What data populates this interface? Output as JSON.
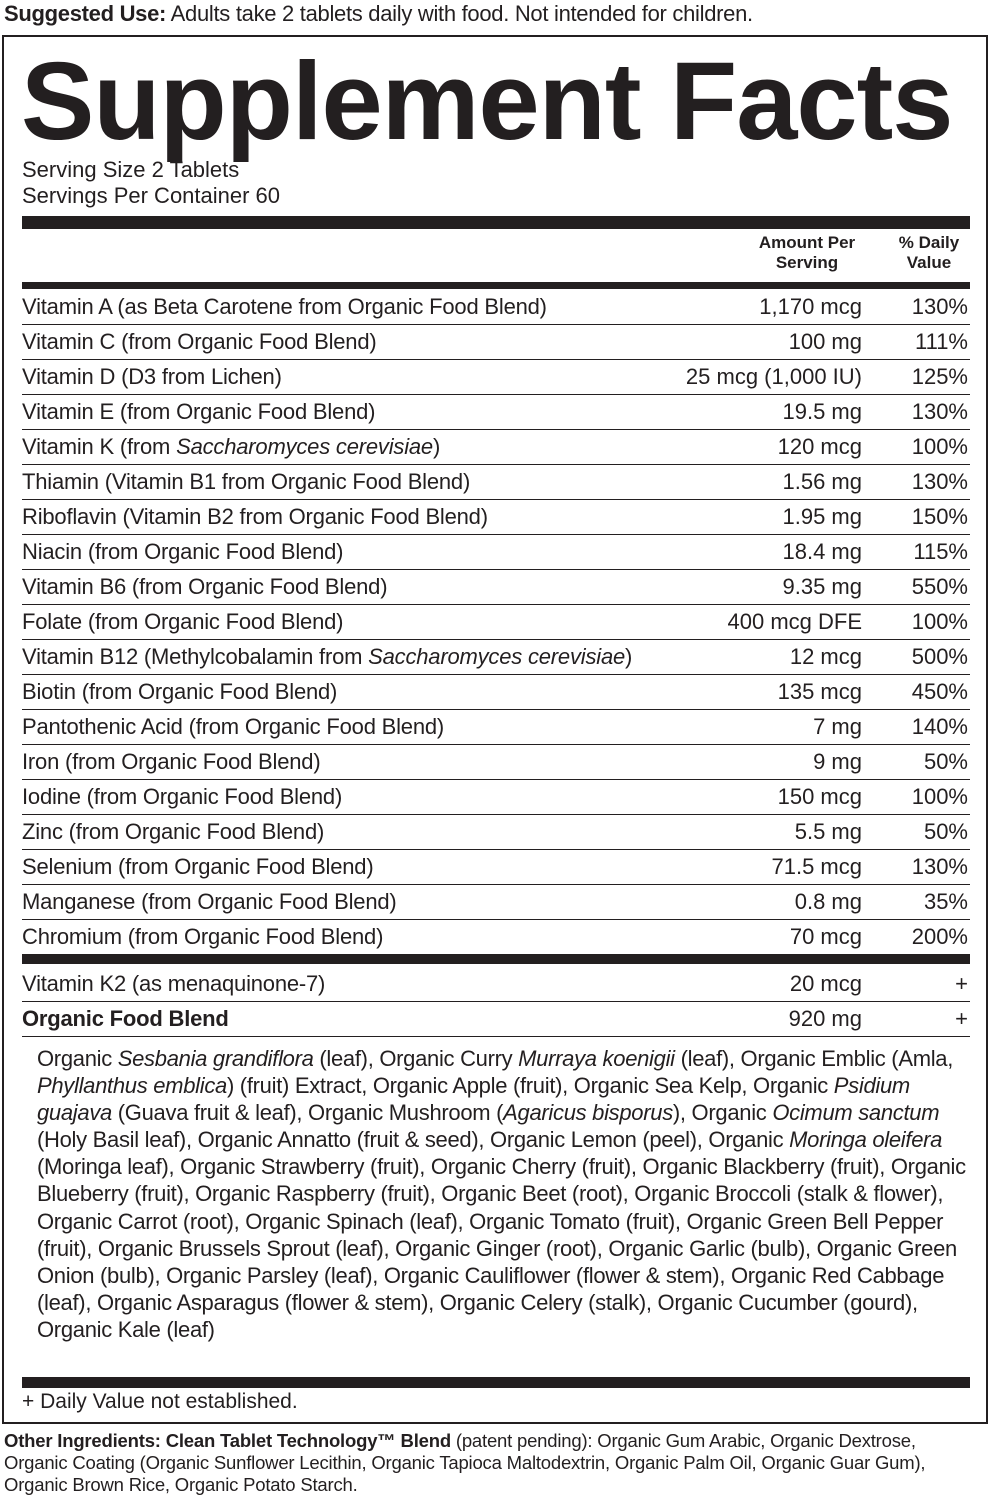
{
  "suggested_use": {
    "label": "Suggested Use:",
    "text": " Adults take 2 tablets daily with food. Not intended for children."
  },
  "title": "Supplement Facts",
  "serving_size": "Serving Size 2 Tablets",
  "servings_per_container": "Servings Per Container 60",
  "columns": {
    "amount_line1": "Amount Per",
    "amount_line2": "Serving",
    "dv_line1": "% Daily",
    "dv_line2": "Value"
  },
  "nutrients": [
    {
      "prefix": "Vitamin A (as Beta Carotene from Organic Food Blend)",
      "italic": "",
      "suffix": "",
      "amount": "1,170 mcg",
      "dv": "130%"
    },
    {
      "prefix": "Vitamin C (from Organic Food Blend)",
      "italic": "",
      "suffix": "",
      "amount": "100 mg",
      "dv": "111%"
    },
    {
      "prefix": "Vitamin D (D3 from Lichen)",
      "italic": "",
      "suffix": "",
      "amount": "25 mcg (1,000 IU)",
      "dv": "125%"
    },
    {
      "prefix": "Vitamin E (from Organic Food Blend)",
      "italic": "",
      "suffix": "",
      "amount": "19.5 mg",
      "dv": "130%"
    },
    {
      "prefix": "Vitamin K (from ",
      "italic": "Saccharomyces cerevisiae",
      "suffix": ")",
      "amount": "120 mcg",
      "dv": "100%"
    },
    {
      "prefix": "Thiamin (Vitamin B1 from Organic Food Blend)",
      "italic": "",
      "suffix": "",
      "amount": "1.56 mg",
      "dv": "130%"
    },
    {
      "prefix": "Riboflavin (Vitamin B2 from Organic Food Blend)",
      "italic": "",
      "suffix": "",
      "amount": "1.95 mg",
      "dv": "150%"
    },
    {
      "prefix": "Niacin (from Organic Food Blend)",
      "italic": "",
      "suffix": "",
      "amount": "18.4 mg",
      "dv": "115%"
    },
    {
      "prefix": "Vitamin B6 (from Organic Food Blend)",
      "italic": "",
      "suffix": "",
      "amount": "9.35 mg",
      "dv": "550%"
    },
    {
      "prefix": "Folate (from Organic Food Blend)",
      "italic": "",
      "suffix": "",
      "amount": "400 mcg DFE",
      "dv": "100%"
    },
    {
      "prefix": "Vitamin B12 (Methylcobalamin from ",
      "italic": "Saccharomyces cerevisiae",
      "suffix": ")",
      "amount": "12 mcg",
      "dv": "500%"
    },
    {
      "prefix": "Biotin (from Organic Food Blend)",
      "italic": "",
      "suffix": "",
      "amount": "135 mcg",
      "dv": "450%"
    },
    {
      "prefix": "Pantothenic Acid (from Organic Food Blend)",
      "italic": "",
      "suffix": "",
      "amount": "7 mg",
      "dv": "140%"
    },
    {
      "prefix": "Iron (from Organic Food Blend)",
      "italic": "",
      "suffix": "",
      "amount": "9 mg",
      "dv": "50%"
    },
    {
      "prefix": "Iodine (from Organic Food Blend)",
      "italic": "",
      "suffix": "",
      "amount": "150 mcg",
      "dv": "100%"
    },
    {
      "prefix": "Zinc (from Organic Food Blend)",
      "italic": "",
      "suffix": "",
      "amount": "5.5 mg",
      "dv": "50%"
    },
    {
      "prefix": "Selenium (from Organic Food Blend)",
      "italic": "",
      "suffix": "",
      "amount": "71.5 mcg",
      "dv": "130%"
    },
    {
      "prefix": "Manganese (from Organic Food Blend)",
      "italic": "",
      "suffix": "",
      "amount": "0.8 mg",
      "dv": "35%"
    },
    {
      "prefix": "Chromium (from Organic Food Blend)",
      "italic": "",
      "suffix": "",
      "amount": "70 mcg",
      "dv": "200%"
    }
  ],
  "other_nutrients": [
    {
      "prefix": "Vitamin K2 (as menaquinone-7)",
      "italic": "",
      "suffix": "",
      "amount": "20 mcg",
      "dv": "+",
      "bold": false
    },
    {
      "prefix": "Organic Food Blend",
      "italic": "",
      "suffix": "",
      "amount": "920 mg",
      "dv": "+",
      "bold": true
    }
  ],
  "blend_ingredients": [
    {
      "t": "Organic "
    },
    {
      "t": "Sesbania grandiflora",
      "i": true
    },
    {
      "t": " (leaf), Organic Curry "
    },
    {
      "t": "Murraya koenigii",
      "i": true
    },
    {
      "t": " (leaf), Organic Emblic (Amla, "
    },
    {
      "t": "Phyllanthus emblica",
      "i": true
    },
    {
      "t": ") (fruit) Extract, Organic Apple (fruit), Organic Sea Kelp, Organic "
    },
    {
      "t": "Psidium guajava",
      "i": true
    },
    {
      "t": " (Guava fruit & leaf), Organic Mushroom ("
    },
    {
      "t": "Agaricus bisporus",
      "i": true
    },
    {
      "t": "), Organic "
    },
    {
      "t": "Ocimum sanctum",
      "i": true
    },
    {
      "t": " (Holy Basil leaf), Organic Annatto (fruit & seed), Organic Lemon (peel), Organic "
    },
    {
      "t": "Moringa oleifera",
      "i": true
    },
    {
      "t": " (Moringa leaf), Organic Strawberry (fruit), Organic Cherry (fruit), Organic Blackberry (fruit), Organic Blueberry (fruit), Organic Raspberry (fruit), Organic Beet (root), Organic Broccoli (stalk & flower), Organic Carrot (root), Organic Spinach (leaf), Organic Tomato (fruit), Organic Green Bell Pepper (fruit), Organic Brussels Sprout (leaf), Organic Ginger (root), Organic Garlic (bulb), Organic Green Onion (bulb), Organic Parsley (leaf), Organic Cauliflower (flower & stem), Organic Red Cabbage (leaf), Organic Asparagus (flower & stem), Organic Celery (stalk), Organic Cucumber (gourd), Organic Kale (leaf)"
    }
  ],
  "footnote": "+ Daily Value not established.",
  "other_ingredients": {
    "label": "Other Ingredients: Clean Tablet Technology™ Blend",
    "text": " (patent pending): Organic Gum Arabic, Organic Dextrose, Organic Coating (Organic Sunflower Lecithin, Organic Tapioca Maltodextrin, Organic Palm Oil, Organic Guar Gum), Organic Brown Rice, Organic Potato Starch."
  },
  "colors": {
    "ink": "#231f20",
    "background": "#ffffff"
  }
}
